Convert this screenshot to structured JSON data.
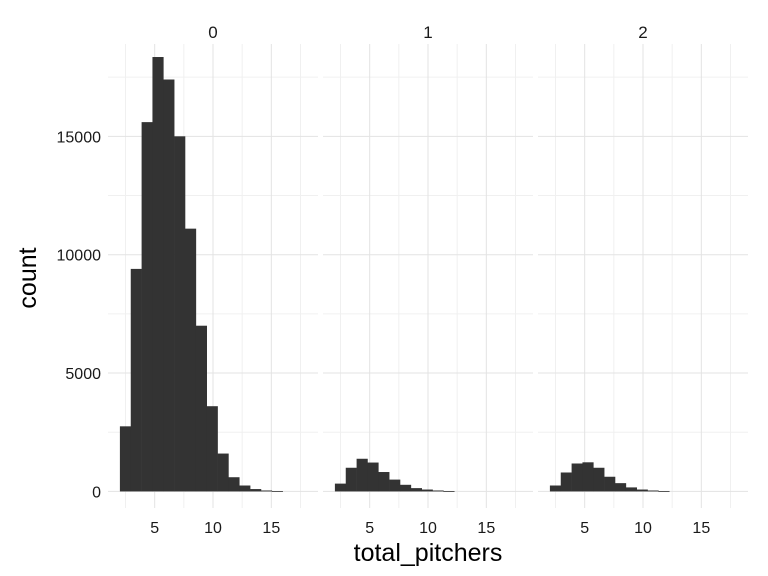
{
  "chart_data": {
    "type": "bar",
    "subtype": "faceted-histogram",
    "title": "",
    "xlabel": "total_pitchers",
    "ylabel": "count",
    "xlim": [
      1,
      19
    ],
    "ylim": [
      -700,
      18900
    ],
    "x_ticks": [
      5,
      10,
      15
    ],
    "y_ticks": [
      0,
      5000,
      10000,
      15000
    ],
    "y_tick_labels": [
      "0",
      "5000",
      "10000",
      "15000"
    ],
    "grid": true,
    "legend": "none",
    "bar_color": "#333333",
    "bin_width": 0.93,
    "bin_start": 2.02,
    "facets": [
      {
        "label": "0",
        "counts": [
          2750,
          9400,
          15600,
          18350,
          17400,
          15000,
          11100,
          7000,
          3600,
          1600,
          600,
          250,
          100,
          40,
          15
        ]
      },
      {
        "label": "1",
        "counts": [
          330,
          1000,
          1380,
          1220,
          820,
          500,
          280,
          140,
          80,
          40,
          15
        ]
      },
      {
        "label": "2",
        "counts": [
          250,
          800,
          1180,
          1230,
          1000,
          620,
          350,
          170,
          80,
          40,
          15
        ]
      }
    ]
  }
}
